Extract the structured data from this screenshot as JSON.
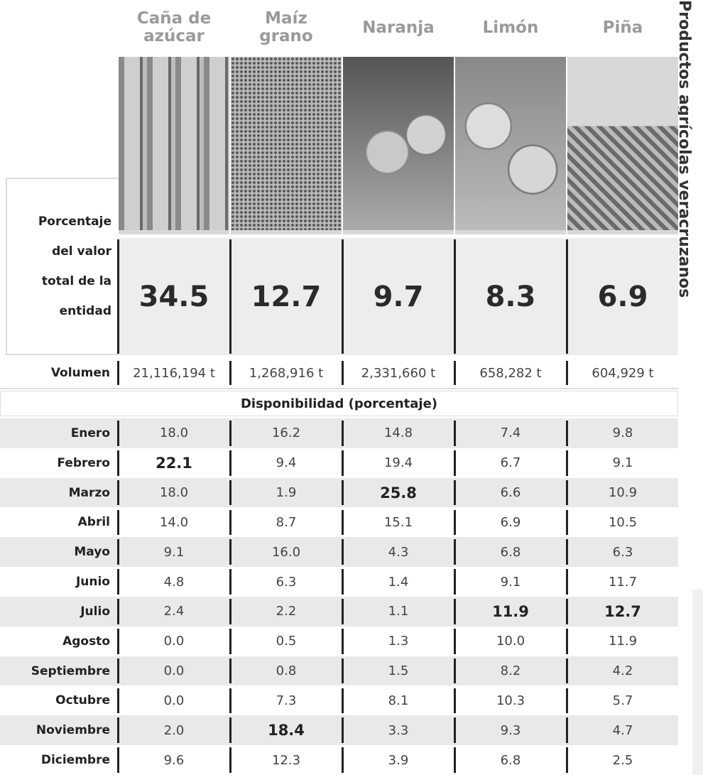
{
  "side_title": "Productos agrícolas veracruzanos",
  "table": {
    "columns": [
      "Caña de azúcar",
      "Maíz grano",
      "Naranja",
      "Limón",
      "Piña"
    ],
    "percent_label": "Porcentaje del valor total de la entidad",
    "percent": [
      "34.5",
      "12.7",
      "9.7",
      "8.3",
      "6.9"
    ],
    "volume_label": "Volumen",
    "volume": [
      "21,116,194 t",
      "1,268,916 t",
      "2,331,660 t",
      "658,282 t",
      "604,929 t"
    ],
    "section": "Disponibilidad (porcentaje)",
    "rows": [
      {
        "label": "Enero",
        "values": [
          "18.0",
          "16.2",
          "14.8",
          "7.4",
          "9.8"
        ]
      },
      {
        "label": "Febrero",
        "values": [
          "22.1",
          "9.4",
          "19.4",
          "6.7",
          "9.1"
        ]
      },
      {
        "label": "Marzo",
        "values": [
          "18.0",
          "1.9",
          "25.8",
          "6.6",
          "10.9"
        ]
      },
      {
        "label": "Abril",
        "values": [
          "14.0",
          "8.7",
          "15.1",
          "6.9",
          "10.5"
        ]
      },
      {
        "label": "Mayo",
        "values": [
          "9.1",
          "16.0",
          "4.3",
          "6.8",
          "6.3"
        ]
      },
      {
        "label": "Junio",
        "values": [
          "4.8",
          "6.3",
          "1.4",
          "9.1",
          "11.7"
        ]
      },
      {
        "label": "Julio",
        "values": [
          "2.4",
          "2.2",
          "1.1",
          "11.9",
          "12.7"
        ]
      },
      {
        "label": "Agosto",
        "values": [
          "0.0",
          "0.5",
          "1.3",
          "10.0",
          "11.9"
        ]
      },
      {
        "label": "Septiembre",
        "values": [
          "0.0",
          "0.8",
          "1.5",
          "8.2",
          "4.2"
        ]
      },
      {
        "label": "Octubre",
        "values": [
          "0.0",
          "7.3",
          "8.1",
          "10.3",
          "5.7"
        ]
      },
      {
        "label": "Noviembre",
        "values": [
          "2.0",
          "18.4",
          "3.3",
          "9.3",
          "4.7"
        ]
      },
      {
        "label": "Diciembre",
        "values": [
          "9.6",
          "12.3",
          "3.9",
          "6.8",
          "2.5"
        ]
      }
    ]
  }
}
